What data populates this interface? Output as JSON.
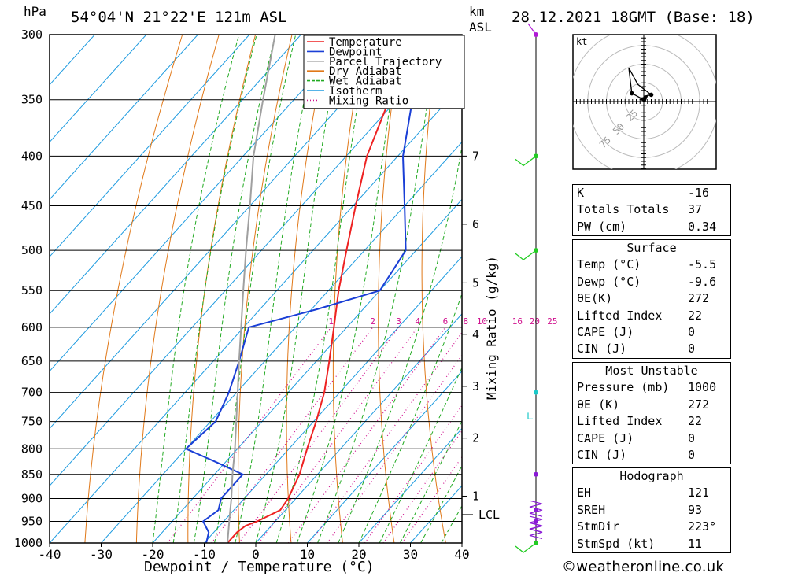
{
  "header": {
    "units_left": "hPa",
    "location": "54°04'N 21°22'E 121m ASL",
    "units_km": "km",
    "units_asl": "ASL",
    "datetime": "28.12.2021 18GMT (Base: 18)"
  },
  "chart_data": {
    "type": "line",
    "subtype": "skew-t log-p diagram",
    "xlabel": "Dewpoint / Temperature (°C)",
    "ylabel_right": "Mixing Ratio (g/kg)",
    "x_range": [
      -40,
      40
    ],
    "x_ticks": [
      -40,
      -30,
      -20,
      -10,
      0,
      10,
      20,
      30,
      40
    ],
    "p_range": [
      1000,
      300
    ],
    "p_ticks": [
      300,
      350,
      400,
      450,
      500,
      550,
      600,
      650,
      700,
      750,
      800,
      850,
      900,
      950,
      1000
    ],
    "km_ticks": [
      {
        "label": "7",
        "p": 400
      },
      {
        "label": "6",
        "p": 470
      },
      {
        "label": "5",
        "p": 540
      },
      {
        "label": "4",
        "p": 610
      },
      {
        "label": "3",
        "p": 690
      },
      {
        "label": "2",
        "p": 780
      },
      {
        "label": "1",
        "p": 895
      }
    ],
    "lcl": {
      "label": "LCL",
      "p": 935
    },
    "mixing_ratio_labels": [
      "1",
      "2",
      "3",
      "4",
      "6",
      "8",
      "10",
      "16",
      "20",
      "25"
    ],
    "mixing_ratio_values": [
      1,
      2,
      3,
      4,
      6,
      8,
      10,
      16,
      20,
      25
    ],
    "legend": [
      {
        "name": "Temperature",
        "color": "#ee2222",
        "style": "solid"
      },
      {
        "name": "Dewpoint",
        "color": "#1a3fd6",
        "style": "solid"
      },
      {
        "name": "Parcel Trajectory",
        "color": "#a0a0a0",
        "style": "solid"
      },
      {
        "name": "Dry Adiabat",
        "color": "#e07818",
        "style": "solid"
      },
      {
        "name": "Wet Adiabat",
        "color": "#22aa22",
        "style": "dashed"
      },
      {
        "name": "Isotherm",
        "color": "#1e9be0",
        "style": "solid"
      },
      {
        "name": "Mixing Ratio",
        "color": "#d0108e",
        "style": "dotted"
      }
    ],
    "legend_placement": "top-center",
    "series": [
      {
        "name": "Temperature",
        "color": "#ee2222",
        "points": [
          [
            1000,
            -5.5
          ],
          [
            975,
            -5.5
          ],
          [
            960,
            -5.0
          ],
          [
            950,
            -3.5
          ],
          [
            925,
            -1.0
          ],
          [
            900,
            -1.5
          ],
          [
            850,
            -3.5
          ],
          [
            800,
            -6.5
          ],
          [
            750,
            -9.5
          ],
          [
            700,
            -13.0
          ],
          [
            650,
            -17.5
          ],
          [
            600,
            -22.5
          ],
          [
            550,
            -28.0
          ],
          [
            500,
            -33.5
          ],
          [
            450,
            -39.5
          ],
          [
            400,
            -46.0
          ],
          [
            350,
            -51.5
          ],
          [
            300,
            -56.0
          ]
        ]
      },
      {
        "name": "Dewpoint",
        "color": "#1a3fd6",
        "points": [
          [
            1000,
            -9.6
          ],
          [
            975,
            -11.0
          ],
          [
            950,
            -14.0
          ],
          [
            925,
            -13.0
          ],
          [
            900,
            -14.5
          ],
          [
            850,
            -14.5
          ],
          [
            825,
            -22.0
          ],
          [
            800,
            -30.0
          ],
          [
            750,
            -29.0
          ],
          [
            700,
            -31.5
          ],
          [
            650,
            -35.0
          ],
          [
            600,
            -39.0
          ],
          [
            575,
            -29.0
          ],
          [
            550,
            -20.0
          ],
          [
            500,
            -22.0
          ],
          [
            450,
            -30.0
          ],
          [
            400,
            -39.0
          ],
          [
            350,
            -47.0
          ],
          [
            300,
            -51.0
          ]
        ]
      },
      {
        "name": "Parcel Trajectory",
        "color": "#a0a0a0",
        "points": [
          [
            1000,
            -5.5
          ],
          [
            935,
            -10.0
          ],
          [
            900,
            -12.5
          ],
          [
            850,
            -16.5
          ],
          [
            800,
            -20.5
          ],
          [
            750,
            -25.0
          ],
          [
            700,
            -29.8
          ],
          [
            650,
            -35.0
          ],
          [
            600,
            -40.5
          ],
          [
            550,
            -46.5
          ],
          [
            500,
            -53.0
          ],
          [
            450,
            -60.0
          ],
          [
            400,
            -68.0
          ],
          [
            350,
            -76.0
          ],
          [
            300,
            -85.0
          ]
        ]
      }
    ],
    "wind_axis_markers": [
      {
        "p": 1000,
        "color": "#22cc22"
      },
      {
        "p": 950,
        "color": "#8a1ad6"
      },
      {
        "p": 925,
        "color": "#8a1ad6"
      },
      {
        "p": 850,
        "color": "#8a1ad6"
      },
      {
        "p": 700,
        "color": "#1bc9c9"
      },
      {
        "p": 500,
        "color": "#22cc22"
      },
      {
        "p": 400,
        "color": "#22cc22"
      },
      {
        "p": 300,
        "color": "#b01ad6"
      }
    ]
  },
  "hodograph": {
    "unit_label": "kt",
    "ring_labels": [
      "25",
      "50",
      "75"
    ],
    "points": [
      [
        -1,
        3
      ],
      [
        -16,
        11
      ],
      [
        -20,
        45
      ],
      [
        -8,
        23
      ],
      [
        10,
        9
      ],
      [
        0,
        7
      ]
    ]
  },
  "indices": {
    "rows": [
      {
        "label": "K",
        "value": "-16"
      },
      {
        "label": "Totals Totals",
        "value": "37"
      },
      {
        "label": "PW (cm)",
        "value": "0.34"
      }
    ]
  },
  "surface": {
    "title": "Surface",
    "rows": [
      {
        "label": "Temp (°C)",
        "value": "-5.5"
      },
      {
        "label": "Dewp (°C)",
        "value": "-9.6"
      },
      {
        "label": "θE(K)",
        "value": "272"
      },
      {
        "label": "Lifted Index",
        "value": "22"
      },
      {
        "label": "CAPE (J)",
        "value": "0"
      },
      {
        "label": "CIN (J)",
        "value": "0"
      }
    ]
  },
  "most_unstable": {
    "title": "Most Unstable",
    "rows": [
      {
        "label": "Pressure (mb)",
        "value": "1000"
      },
      {
        "label": "θE (K)",
        "value": "272"
      },
      {
        "label": "Lifted Index",
        "value": "22"
      },
      {
        "label": "CAPE (J)",
        "value": "0"
      },
      {
        "label": "CIN (J)",
        "value": "0"
      }
    ]
  },
  "hodograph_stats": {
    "title": "Hodograph",
    "rows": [
      {
        "label": "EH",
        "value": "121"
      },
      {
        "label": "SREH",
        "value": "93"
      },
      {
        "label": "StmDir",
        "value": "223°"
      },
      {
        "label": "StmSpd (kt)",
        "value": "11"
      }
    ]
  },
  "footer": {
    "credit": "©weatheronline.co.uk"
  }
}
